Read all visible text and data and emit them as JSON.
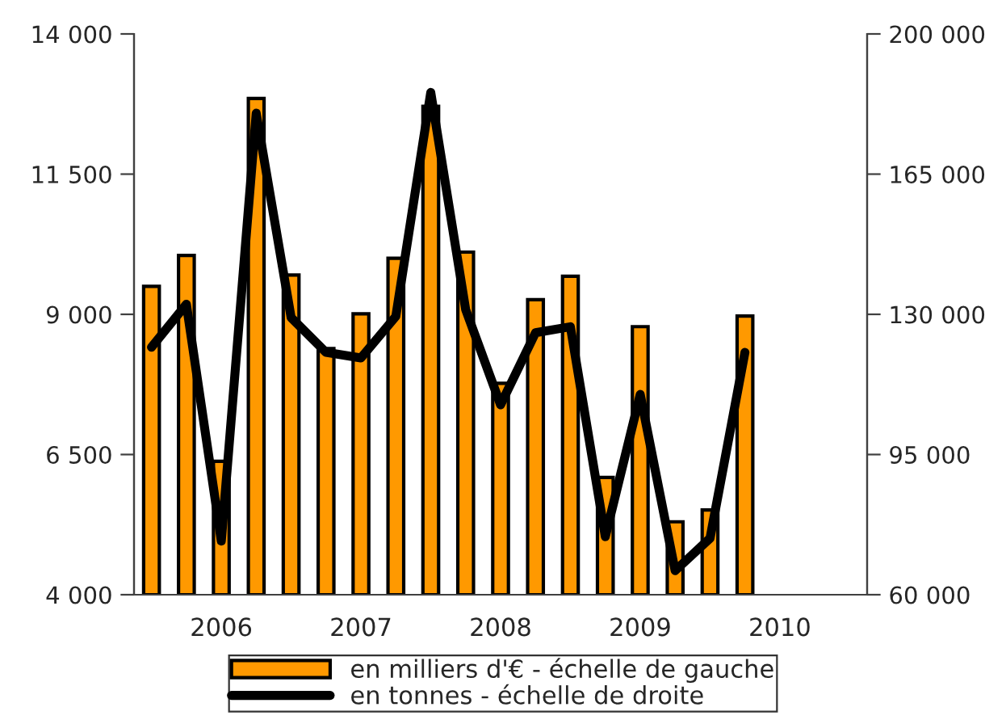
{
  "chart_data": {
    "type": "bar",
    "categories": [
      null,
      null,
      "2006",
      null,
      null,
      null,
      "2007",
      null,
      null,
      null,
      "2008",
      null,
      null,
      null,
      "2009",
      null,
      null,
      null,
      "2010",
      null,
      null
    ],
    "series": [
      {
        "name": "en milliers d'€ - échelle de gauche",
        "color": "#ff9900",
        "values": [
          9500,
          10050,
          6380,
          12850,
          9700,
          8390,
          9010,
          10000,
          12710,
          10110,
          7770,
          9260,
          9680,
          6090,
          8780,
          5300,
          5510,
          8970,
          null,
          null,
          null
        ]
      },
      {
        "name": "en tonnes - échelle de droite",
        "type": "line",
        "axis": "y2",
        "color": "#000000",
        "values": [
          121800,
          132500,
          73400,
          180200,
          129200,
          120500,
          119100,
          129500,
          185400,
          131200,
          107400,
          125400,
          126900,
          74500,
          110000,
          66000,
          74100,
          120500,
          null,
          null,
          null
        ]
      }
    ],
    "ylim": [
      4000,
      14000
    ],
    "yticks": [
      {
        "value": 4000,
        "label": "4 000"
      },
      {
        "value": 6500,
        "label": "6 500"
      },
      {
        "value": 9000,
        "label": "9 000"
      },
      {
        "value": 11500,
        "label": "11 500"
      },
      {
        "value": 14000,
        "label": "14 000"
      }
    ],
    "y2lim": [
      60000,
      200000
    ],
    "y2ticks": [
      {
        "value": 60000,
        "label": "60 000"
      },
      {
        "value": 95000,
        "label": "95 000"
      },
      {
        "value": 130000,
        "label": "130 000"
      },
      {
        "value": 165000,
        "label": "165 000"
      },
      {
        "value": 200000,
        "label": "200 000"
      }
    ],
    "grid": false,
    "legend": "bottom",
    "marker": "none",
    "line_style": "solid"
  }
}
